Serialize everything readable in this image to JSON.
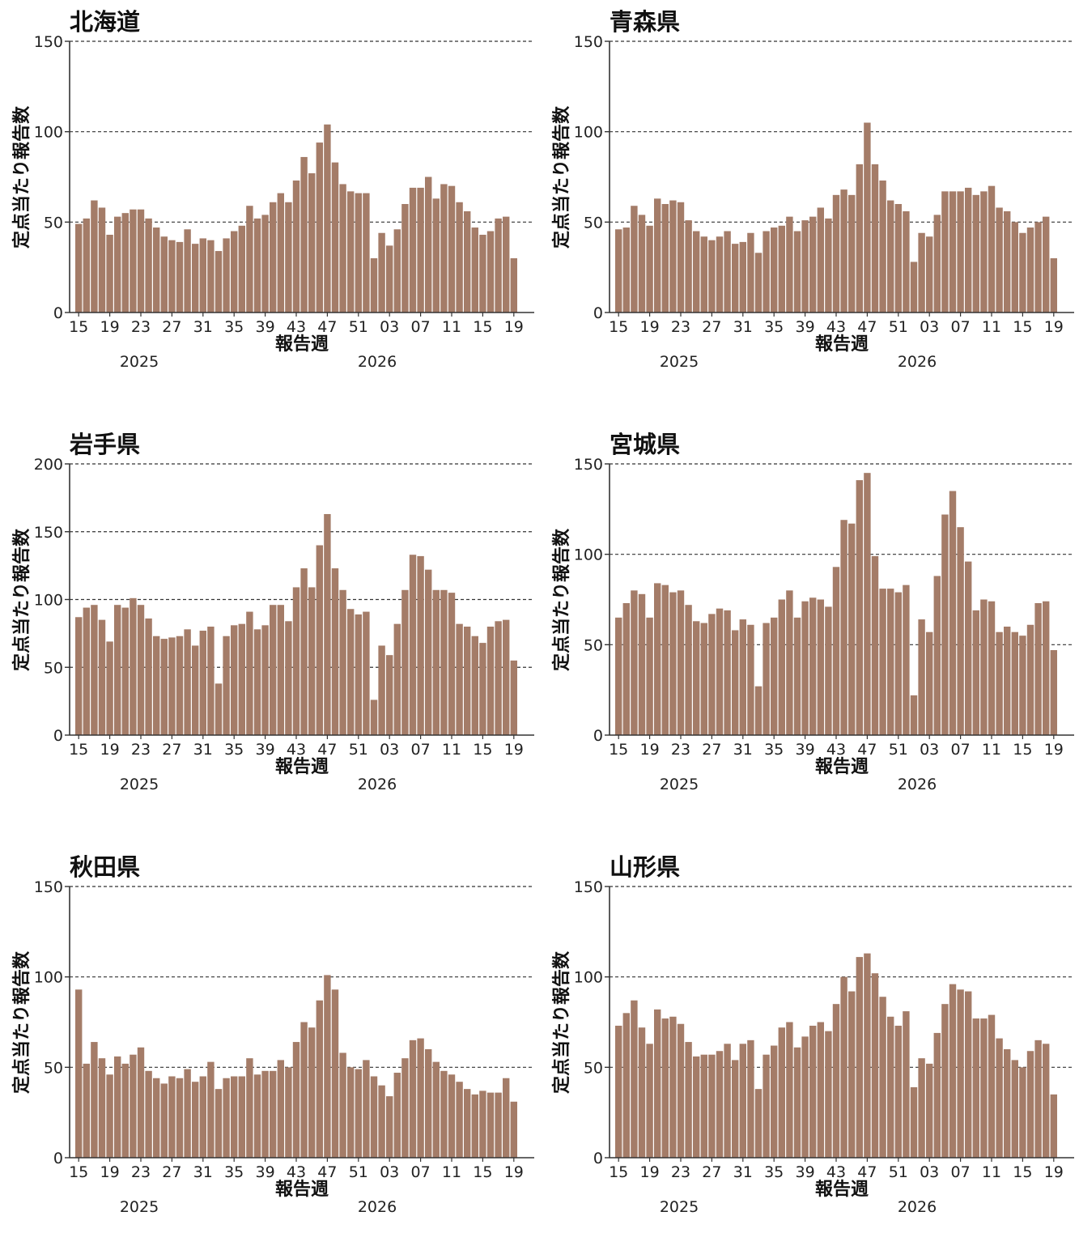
{
  "bar_color": "#a47c68",
  "grid_color": "#333333",
  "axis_color": "#333333",
  "chart_data": [
    {
      "type": "bar",
      "title": "北海道",
      "xlabel": "報告週",
      "ylabel": "定点当たり報告数",
      "ylim": [
        0,
        150
      ],
      "yticks": [
        0,
        50,
        100,
        150
      ],
      "xtick_labels": [
        "15",
        "19",
        "23",
        "27",
        "31",
        "35",
        "39",
        "43",
        "47",
        "51",
        "03",
        "07",
        "11",
        "15",
        "19"
      ],
      "year_labels": [
        "2025",
        "2026"
      ],
      "grid": "horizontal-dashed",
      "values": [
        49,
        52,
        62,
        58,
        43,
        53,
        55,
        57,
        57,
        52,
        47,
        42,
        40,
        39,
        46,
        38,
        41,
        40,
        34,
        41,
        45,
        48,
        59,
        52,
        54,
        61,
        66,
        61,
        73,
        86,
        77,
        94,
        104,
        83,
        71,
        67,
        66,
        66,
        30,
        44,
        37,
        46,
        60,
        69,
        69,
        75,
        63,
        71,
        70,
        61,
        56,
        47,
        43,
        45,
        52,
        53,
        30
      ]
    },
    {
      "type": "bar",
      "title": "青森県",
      "xlabel": "報告週",
      "ylabel": "定点当たり報告数",
      "ylim": [
        0,
        150
      ],
      "yticks": [
        0,
        50,
        100,
        150
      ],
      "xtick_labels": [
        "15",
        "19",
        "23",
        "27",
        "31",
        "35",
        "39",
        "43",
        "47",
        "51",
        "03",
        "07",
        "11",
        "15",
        "19"
      ],
      "year_labels": [
        "2025",
        "2026"
      ],
      "grid": "horizontal-dashed",
      "values": [
        46,
        47,
        59,
        54,
        48,
        63,
        60,
        62,
        61,
        51,
        45,
        42,
        40,
        42,
        45,
        38,
        39,
        44,
        33,
        45,
        47,
        48,
        53,
        45,
        51,
        53,
        58,
        52,
        65,
        68,
        65,
        82,
        105,
        82,
        73,
        62,
        60,
        56,
        28,
        44,
        42,
        54,
        67,
        67,
        67,
        69,
        65,
        67,
        70,
        58,
        56,
        50,
        44,
        47,
        50,
        53,
        30
      ]
    },
    {
      "type": "bar",
      "title": "岩手県",
      "xlabel": "報告週",
      "ylabel": "定点当たり報告数",
      "ylim": [
        0,
        200
      ],
      "yticks": [
        0,
        50,
        100,
        150,
        200
      ],
      "xtick_labels": [
        "15",
        "19",
        "23",
        "27",
        "31",
        "35",
        "39",
        "43",
        "47",
        "51",
        "03",
        "07",
        "11",
        "15",
        "19"
      ],
      "year_labels": [
        "2025",
        "2026"
      ],
      "grid": "horizontal-dashed",
      "values": [
        87,
        94,
        96,
        85,
        69,
        96,
        94,
        101,
        96,
        86,
        73,
        71,
        72,
        73,
        78,
        66,
        77,
        80,
        38,
        73,
        81,
        82,
        91,
        78,
        81,
        96,
        96,
        84,
        109,
        123,
        109,
        140,
        163,
        123,
        107,
        93,
        89,
        91,
        26,
        66,
        59,
        82,
        107,
        133,
        132,
        122,
        107,
        107,
        105,
        82,
        80,
        73,
        68,
        80,
        84,
        85,
        55
      ]
    },
    {
      "type": "bar",
      "title": "宮城県",
      "xlabel": "報告週",
      "ylabel": "定点当たり報告数",
      "ylim": [
        0,
        150
      ],
      "yticks": [
        0,
        50,
        100,
        150
      ],
      "xtick_labels": [
        "15",
        "19",
        "23",
        "27",
        "31",
        "35",
        "39",
        "43",
        "47",
        "51",
        "03",
        "07",
        "11",
        "15",
        "19"
      ],
      "year_labels": [
        "2025",
        "2026"
      ],
      "grid": "horizontal-dashed",
      "values": [
        65,
        73,
        80,
        78,
        65,
        84,
        83,
        79,
        80,
        72,
        63,
        62,
        67,
        70,
        69,
        58,
        64,
        61,
        27,
        62,
        65,
        75,
        80,
        65,
        74,
        76,
        75,
        71,
        93,
        119,
        117,
        141,
        145,
        99,
        81,
        81,
        79,
        83,
        22,
        64,
        57,
        88,
        122,
        135,
        115,
        96,
        69,
        75,
        74,
        57,
        60,
        57,
        55,
        61,
        73,
        74,
        47
      ]
    },
    {
      "type": "bar",
      "title": "秋田県",
      "xlabel": "報告週",
      "ylabel": "定点当たり報告数",
      "ylim": [
        0,
        150
      ],
      "yticks": [
        0,
        50,
        100,
        150
      ],
      "xtick_labels": [
        "15",
        "19",
        "23",
        "27",
        "31",
        "35",
        "39",
        "43",
        "47",
        "51",
        "03",
        "07",
        "11",
        "15",
        "19"
      ],
      "year_labels": [
        "2025",
        "2026"
      ],
      "grid": "horizontal-dashed",
      "values": [
        93,
        52,
        64,
        55,
        46,
        56,
        52,
        57,
        61,
        48,
        44,
        41,
        45,
        44,
        49,
        42,
        45,
        53,
        38,
        44,
        45,
        45,
        55,
        46,
        48,
        48,
        54,
        50,
        64,
        75,
        72,
        87,
        101,
        93,
        58,
        50,
        49,
        54,
        45,
        40,
        34,
        47,
        55,
        65,
        66,
        60,
        53,
        48,
        46,
        42,
        38,
        35,
        37,
        36,
        36,
        44,
        31
      ]
    },
    {
      "type": "bar",
      "title": "山形県",
      "xlabel": "報告週",
      "ylabel": "定点当たり報告数",
      "ylim": [
        0,
        150
      ],
      "yticks": [
        0,
        50,
        100,
        150
      ],
      "xtick_labels": [
        "15",
        "19",
        "23",
        "27",
        "31",
        "35",
        "39",
        "43",
        "47",
        "51",
        "03",
        "07",
        "11",
        "15",
        "19"
      ],
      "year_labels": [
        "2025",
        "2026"
      ],
      "grid": "horizontal-dashed",
      "values": [
        73,
        80,
        87,
        72,
        63,
        82,
        77,
        78,
        74,
        64,
        56,
        57,
        57,
        59,
        63,
        54,
        63,
        65,
        38,
        57,
        62,
        72,
        75,
        61,
        67,
        73,
        75,
        70,
        85,
        100,
        92,
        111,
        113,
        102,
        89,
        78,
        73,
        81,
        39,
        55,
        52,
        69,
        85,
        96,
        93,
        92,
        77,
        77,
        79,
        66,
        60,
        54,
        50,
        59,
        65,
        63,
        35
      ]
    }
  ]
}
